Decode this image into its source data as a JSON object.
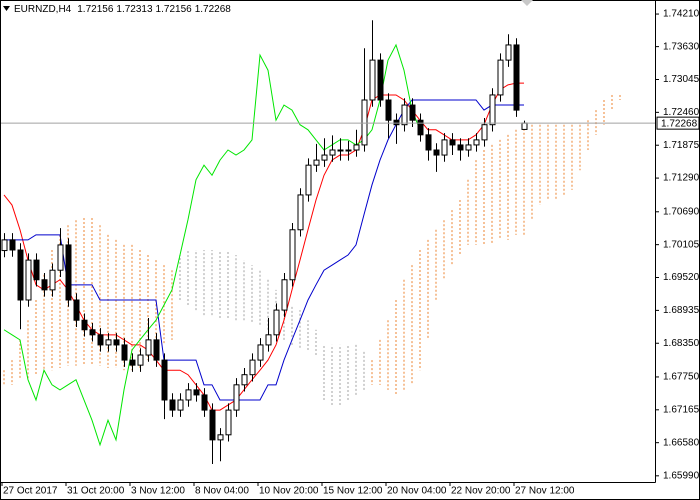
{
  "chart_data": {
    "type": "candlestick",
    "title": "EURNZD,H4",
    "categories": [
      null,
      null,
      null,
      "27 Oct 2017",
      null,
      null,
      null,
      null,
      null,
      null,
      null,
      "31 Oct 20:00",
      null,
      null,
      null,
      null,
      null,
      null,
      null,
      "3 Nov 12:00",
      null,
      null,
      null,
      null,
      null,
      null,
      null,
      "8 Nov 04:00",
      null,
      null,
      null,
      null,
      null,
      null,
      null,
      "10 Nov 20:00",
      null,
      null,
      null,
      null,
      null,
      null,
      null,
      "15 Nov 12:00",
      null,
      null,
      null,
      null,
      null,
      null,
      null,
      "20 Nov 04:00",
      null,
      null,
      null,
      null,
      null,
      null,
      null,
      "22 Nov 20:00",
      null,
      null,
      null,
      null,
      null,
      null,
      null,
      "27 Nov 12:00",
      null,
      null,
      null,
      null,
      null,
      null,
      null,
      null,
      null,
      null
    ],
    "candles": {
      "up_color": "#ffffff",
      "down_color": "#000000",
      "wick_color": "#000000",
      "open": [
        1.7,
        1.7019,
        1.7001,
        1.6912,
        1.6983,
        1.6948,
        1.693,
        1.6965,
        1.701,
        1.6912,
        1.6876,
        1.6859,
        1.685,
        1.6832,
        1.6841,
        1.6832,
        1.6805,
        1.6796,
        1.6814,
        1.6841,
        1.6805,
        1.6734,
        1.6716,
        1.6734,
        1.6752,
        1.6743,
        1.6716,
        1.6663,
        1.6672,
        1.6716,
        1.6761,
        1.6779,
        1.6805,
        1.6832,
        1.685,
        1.6894,
        1.6948,
        1.7037,
        1.7099,
        1.7152,
        1.7161,
        1.717,
        1.7179,
        1.7179,
        1.7179,
        1.7188,
        1.7268,
        1.7339,
        1.7268,
        1.7232,
        1.7224,
        1.7259,
        1.7232,
        1.7206,
        1.7179,
        1.717,
        1.7197,
        1.7188,
        1.7179,
        1.7188,
        1.7197,
        1.7224,
        1.7277,
        1.7339,
        1.7366,
        1.72156,
        null,
        null,
        null,
        null,
        null,
        null,
        null,
        null,
        null,
        null,
        null,
        null
      ],
      "high": [
        1.7031,
        1.7031,
        1.7013,
        1.6995,
        1.6995,
        1.696,
        1.6977,
        1.704,
        1.7022,
        1.6924,
        1.6888,
        1.6871,
        1.6862,
        1.6853,
        1.6853,
        1.6844,
        1.6817,
        1.6826,
        1.688,
        1.6853,
        1.6817,
        1.6746,
        1.6746,
        1.6764,
        1.6764,
        1.6755,
        1.6728,
        1.6684,
        1.6728,
        1.6773,
        1.6791,
        1.6817,
        1.6844,
        1.688,
        1.6906,
        1.696,
        1.7049,
        1.7111,
        1.7164,
        1.719,
        1.72,
        1.7205,
        1.72,
        1.7195,
        1.7215,
        1.736,
        1.741,
        1.7351,
        1.728,
        1.7244,
        1.7271,
        1.7271,
        1.7244,
        1.7218,
        1.7191,
        1.7209,
        1.7209,
        1.72,
        1.72,
        1.7209,
        1.7236,
        1.7289,
        1.7351,
        1.7385,
        1.7378,
        1.72313,
        null,
        null,
        null,
        null,
        null,
        null,
        null,
        null,
        null,
        null,
        null,
        null
      ],
      "low": [
        1.6988,
        1.6989,
        1.686,
        1.69,
        1.6936,
        1.6918,
        1.6918,
        1.6953,
        1.69,
        1.6864,
        1.6847,
        1.6838,
        1.682,
        1.682,
        1.682,
        1.6793,
        1.6784,
        1.6784,
        1.6802,
        1.6793,
        1.67,
        1.6704,
        1.6704,
        1.6722,
        1.6731,
        1.6704,
        1.662,
        1.6625,
        1.666,
        1.6704,
        1.6749,
        1.6767,
        1.6793,
        1.682,
        1.6838,
        1.6882,
        1.6936,
        1.7025,
        1.7087,
        1.714,
        1.7149,
        1.7158,
        1.716,
        1.716,
        1.7167,
        1.7176,
        1.7256,
        1.7256,
        1.72,
        1.719,
        1.7212,
        1.722,
        1.7194,
        1.716,
        1.714,
        1.7158,
        1.717,
        1.716,
        1.7167,
        1.7176,
        1.7185,
        1.7212,
        1.7265,
        1.7327,
        1.7238,
        1.72156,
        null,
        null,
        null,
        null,
        null,
        null,
        null,
        null,
        null,
        null,
        null,
        null
      ],
      "close": [
        1.7019,
        1.7001,
        1.6912,
        1.6983,
        1.6948,
        1.693,
        1.6965,
        1.701,
        1.6912,
        1.6876,
        1.6859,
        1.685,
        1.6832,
        1.6841,
        1.6832,
        1.6805,
        1.6796,
        1.6814,
        1.6841,
        1.6805,
        1.6734,
        1.6716,
        1.6734,
        1.6752,
        1.6743,
        1.6716,
        1.6663,
        1.6672,
        1.6716,
        1.6761,
        1.6779,
        1.6805,
        1.6832,
        1.685,
        1.6894,
        1.6948,
        1.7037,
        1.7099,
        1.7152,
        1.7161,
        1.717,
        1.7179,
        1.7179,
        1.7179,
        1.7188,
        1.7268,
        1.7339,
        1.7268,
        1.7232,
        1.7224,
        1.7259,
        1.7232,
        1.7206,
        1.7179,
        1.717,
        1.7197,
        1.7188,
        1.7179,
        1.7188,
        1.7197,
        1.7224,
        1.7277,
        1.7339,
        1.7366,
        1.725,
        1.72268,
        null,
        null,
        null,
        null,
        null,
        null,
        null,
        null,
        null,
        null,
        null,
        null
      ]
    },
    "lines": [
      {
        "color": "#ff0000",
        "values": [
          1.7099,
          1.7081,
          1.7037,
          1.6983,
          1.6939,
          1.693,
          1.6939,
          1.6948,
          1.693,
          1.6903,
          1.6876,
          1.6859,
          1.685,
          1.685,
          1.685,
          1.6841,
          1.6832,
          1.6832,
          1.6823,
          1.6805,
          1.6787,
          1.6787,
          1.6787,
          1.6779,
          1.6761,
          1.6743,
          1.6716,
          1.6716,
          1.6725,
          1.6734,
          1.6752,
          1.677,
          1.6787,
          1.6805,
          1.6832,
          1.6876,
          1.693,
          1.6983,
          1.7037,
          1.709,
          1.7134,
          1.7161,
          1.717,
          1.717,
          1.7179,
          1.7215,
          1.7268,
          1.7277,
          1.7277,
          1.7277,
          1.7268,
          1.725,
          1.7232,
          1.7215,
          1.7215,
          1.7206,
          1.7197,
          1.7197,
          1.7197,
          1.7206,
          1.7224,
          1.7259,
          1.7286,
          1.7295,
          1.7298,
          1.7298,
          null,
          null,
          null,
          null,
          null,
          null,
          null,
          null,
          null,
          null,
          null,
          null
        ]
      },
      {
        "color": "#0000cc",
        "values": [
          1.7019,
          1.7019,
          1.7019,
          1.7019,
          1.7028,
          1.7028,
          1.7028,
          1.7028,
          1.6939,
          1.6939,
          1.6939,
          1.6939,
          1.6912,
          1.6912,
          1.6912,
          1.6912,
          1.6912,
          1.6912,
          1.6912,
          1.6912,
          1.6805,
          1.6805,
          1.6805,
          1.6805,
          1.6805,
          1.6761,
          1.6761,
          1.6734,
          1.6734,
          1.6734,
          1.6734,
          1.6734,
          1.6734,
          1.6761,
          1.6761,
          1.6805,
          1.6841,
          1.6876,
          1.6912,
          1.6939,
          1.6965,
          1.6974,
          1.6983,
          1.6992,
          1.701,
          1.7064,
          1.7117,
          1.7161,
          1.7197,
          1.7224,
          1.725,
          1.7268,
          1.7268,
          1.7268,
          1.7268,
          1.7268,
          1.7268,
          1.7268,
          1.7268,
          1.7268,
          1.725,
          1.7259,
          1.7259,
          1.7259,
          1.7259,
          1.7259,
          null,
          null,
          null,
          null,
          null,
          null,
          null,
          null,
          null,
          null,
          null,
          null
        ]
      },
      {
        "color": "#00e600",
        "values": [
          1.6859,
          1.685,
          1.6841,
          1.677,
          1.6734,
          1.6787,
          1.6761,
          1.6752,
          1.6761,
          1.677,
          1.6734,
          1.6698,
          1.6654,
          1.6698,
          1.6663,
          1.6752,
          1.6823,
          1.6841,
          1.6859,
          1.6876,
          1.6903,
          1.693,
          1.6992,
          1.7055,
          1.7126,
          1.7152,
          1.7134,
          1.7161,
          1.7179,
          1.717,
          1.7179,
          1.7197,
          1.7348,
          1.7321,
          1.7232,
          1.7259,
          1.725,
          1.7224,
          1.7215,
          1.7197,
          1.7179,
          1.7188,
          1.7197,
          1.7197,
          1.7188,
          1.7197,
          1.7215,
          1.7268,
          1.7339,
          1.7366,
          1.7321,
          1.725,
          1.7215,
          null,
          null,
          null,
          null,
          null,
          null,
          null,
          null,
          null,
          null,
          null,
          null,
          null,
          null,
          null,
          null,
          null,
          null,
          null,
          null,
          null,
          null,
          null,
          null,
          null
        ]
      }
    ],
    "cloud": {
      "up_color": "#f0a060",
      "down_color": "#b8b8b8",
      "span_a": [
        1.6787,
        1.6805,
        1.6841,
        1.6876,
        1.6912,
        1.6957,
        1.7001,
        1.7028,
        1.7045,
        1.7054,
        1.7058,
        1.7058,
        1.7045,
        1.7028,
        1.7019,
        1.701,
        1.701,
        1.7001,
        1.6992,
        1.6983,
        1.6974,
        1.6965,
        1.6912,
        1.6903,
        1.6894,
        1.6885,
        1.6885,
        1.688,
        1.688,
        1.6876,
        1.6876,
        1.6873,
        1.6868,
        1.6859,
        1.685,
        1.6841,
        1.6832,
        1.6827,
        1.6823,
        1.6814,
        1.6734,
        1.6725,
        1.6725,
        1.6734,
        1.6743,
        1.6752,
        1.6805,
        1.6841,
        1.6876,
        1.6912,
        1.6948,
        1.6974,
        1.7001,
        1.7019,
        1.7037,
        1.7054,
        1.7072,
        1.709,
        1.7126,
        1.7161,
        1.7179,
        1.7188,
        1.7197,
        1.7206,
        1.7215,
        1.7224,
        1.7224,
        1.7224,
        1.7224,
        1.7224,
        1.7224,
        1.7224,
        1.7224,
        1.7232,
        1.725,
        1.7268,
        1.7277,
        1.7277
      ],
      "span_b": [
        1.6761,
        1.6761,
        1.677,
        1.6773,
        1.6779,
        1.6784,
        1.6787,
        1.6791,
        1.6795,
        1.6795,
        1.6795,
        1.6795,
        1.6795,
        1.6791,
        1.6791,
        1.6787,
        1.6787,
        1.6791,
        1.6805,
        1.6823,
        1.6832,
        1.6841,
        1.6992,
        1.7001,
        1.7001,
        1.7001,
        1.7001,
        1.7001,
        1.7001,
        1.6992,
        1.6983,
        1.6974,
        1.6965,
        1.6948,
        1.693,
        1.6912,
        1.6903,
        1.6894,
        1.6876,
        1.6859,
        1.6832,
        1.6832,
        1.6832,
        1.6832,
        1.6832,
        1.6823,
        1.6761,
        1.6761,
        1.6752,
        1.6743,
        1.6752,
        1.6761,
        1.6787,
        1.6841,
        1.6912,
        1.6948,
        1.6974,
        1.6992,
        1.701,
        1.701,
        1.701,
        1.701,
        1.7019,
        1.7019,
        1.7028,
        1.7028,
        1.7054,
        1.7081,
        1.709,
        1.709,
        1.7099,
        1.7108,
        1.7143,
        1.7179,
        1.7206,
        1.7224,
        1.725,
        1.7268
      ]
    },
    "ylim": [
      1.6588,
      1.7446
    ],
    "yticks": [
      {
        "value": 1.7421,
        "label": "1.74210"
      },
      {
        "value": 1.7363,
        "label": "1.73630"
      },
      1.73045,
      {
        "value": 1.7246,
        "label": "1.72460"
      },
      1.71875,
      {
        "value": 1.7129,
        "label": "1.71290"
      },
      {
        "value": 1.7069,
        "label": "1.70690"
      },
      1.70105,
      {
        "value": 1.6952,
        "label": "1.69520"
      },
      1.68935,
      {
        "value": 1.6835,
        "label": "1.68350"
      },
      {
        "value": 1.6775,
        "label": "1.67750"
      },
      1.67165,
      {
        "value": 1.6658,
        "label": "1.66580"
      },
      {
        "value": 1.6599,
        "label": "1.65990"
      }
    ],
    "grid": false
  }
}
